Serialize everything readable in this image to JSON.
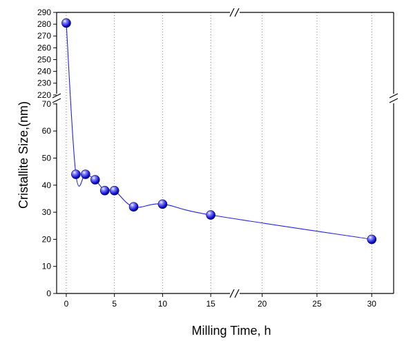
{
  "chart_data": {
    "type": "scatter",
    "title": "",
    "xlabel": "Milling Time, h",
    "ylabel": "Cristallite Size,(nm)",
    "x_axis_segments": [
      {
        "range": [
          -1,
          17.5
        ],
        "ticks": [
          0,
          5,
          10,
          15
        ]
      },
      {
        "range": [
          17.5,
          32
        ],
        "ticks": [
          20,
          25,
          30
        ]
      }
    ],
    "y_axis_segments": [
      {
        "range": [
          0,
          72
        ],
        "ticks": [
          0,
          10,
          20,
          30,
          40,
          50,
          60,
          70
        ]
      },
      {
        "range": [
          217,
          290
        ],
        "ticks": [
          220,
          230,
          240,
          250,
          260,
          270,
          280,
          290
        ]
      }
    ],
    "axis_breaks": {
      "x": [
        17.5
      ],
      "y": [
        72
      ]
    },
    "grid": "vertical dotted",
    "series": [
      {
        "color": "#2020e6",
        "x": [
          0,
          1,
          2,
          3,
          4,
          5,
          7,
          10,
          15,
          30
        ],
        "y": [
          281,
          44,
          44,
          42,
          38,
          38,
          32,
          33,
          29,
          20
        ]
      }
    ]
  }
}
